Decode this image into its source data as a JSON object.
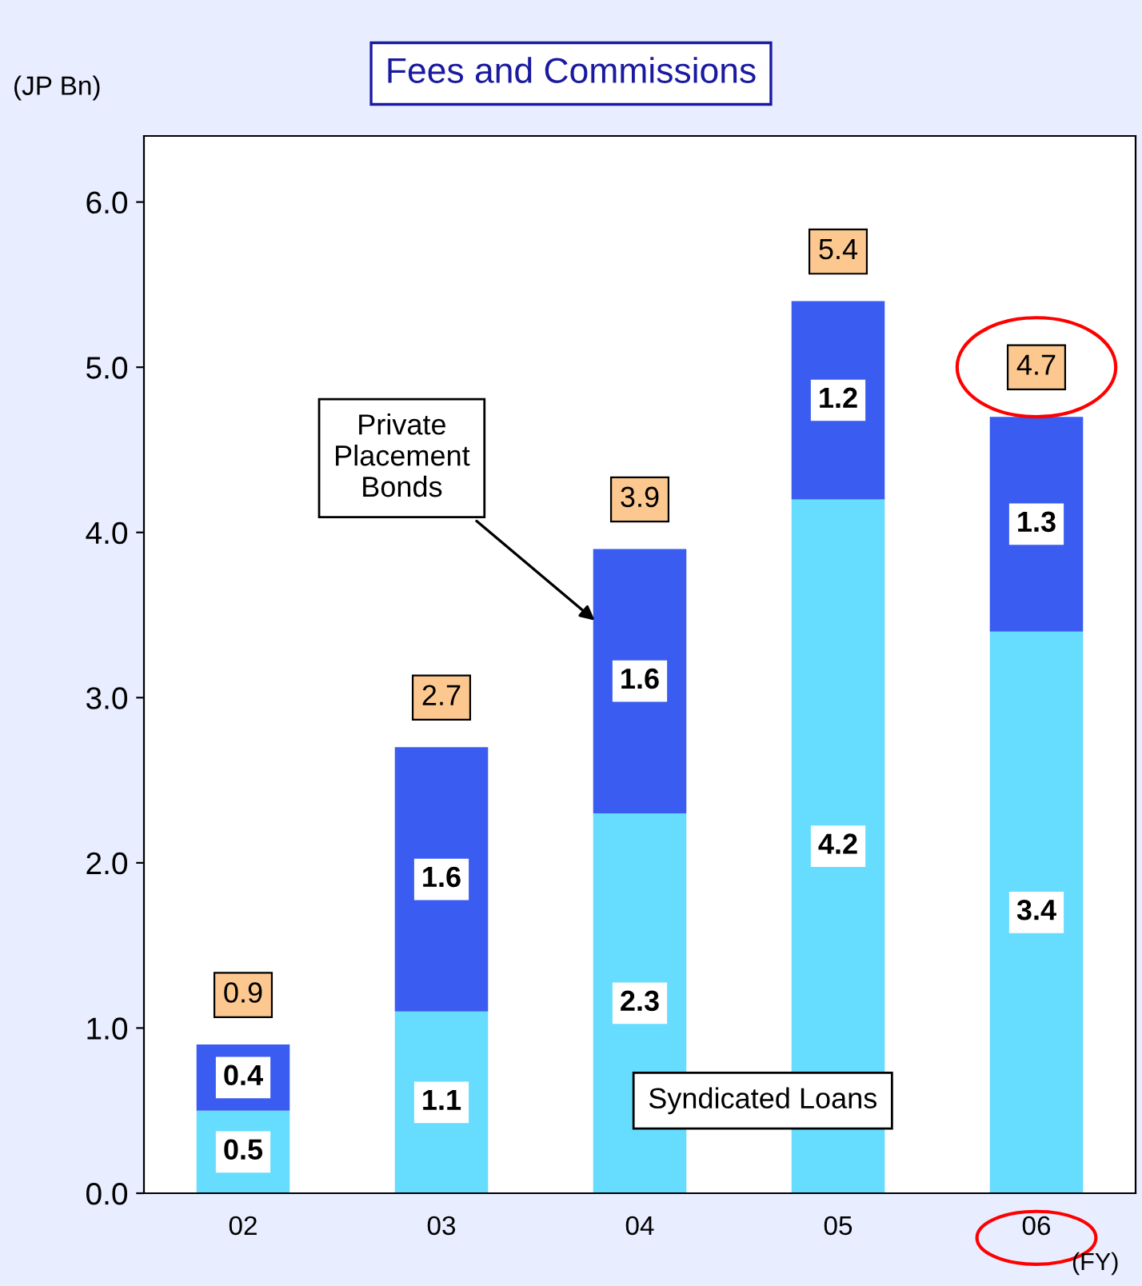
{
  "chart_data": {
    "type": "bar",
    "title": "Fees and Commissions",
    "ylabel": "(JP Bn)",
    "xlabel": "(FY)",
    "categories": [
      "02",
      "03",
      "04",
      "05",
      "06"
    ],
    "stacked": true,
    "series": [
      {
        "name": "Syndicated Loans",
        "color": "#66dcff",
        "values": [
          0.5,
          1.1,
          2.3,
          4.2,
          3.4
        ]
      },
      {
        "name": "Private Placement Bonds",
        "color": "#3a5cf0",
        "values": [
          0.4,
          1.6,
          1.6,
          1.2,
          1.3
        ]
      }
    ],
    "totals": [
      "0.9",
      "2.7",
      "3.9",
      "5.4",
      "4.7"
    ],
    "data_labels": true,
    "ylim": [
      0,
      6.4
    ],
    "yticks": [
      {
        "value": 0,
        "label": "0.0"
      },
      {
        "value": 1,
        "label": "1.0"
      },
      {
        "value": 2,
        "label": "2.0"
      },
      {
        "value": 3,
        "label": "3.0"
      },
      {
        "value": 4,
        "label": "4.0"
      },
      {
        "value": 5,
        "label": "5.0"
      },
      {
        "value": 6,
        "label": "6.0"
      }
    ],
    "grid": false,
    "legend": false
  }
}
